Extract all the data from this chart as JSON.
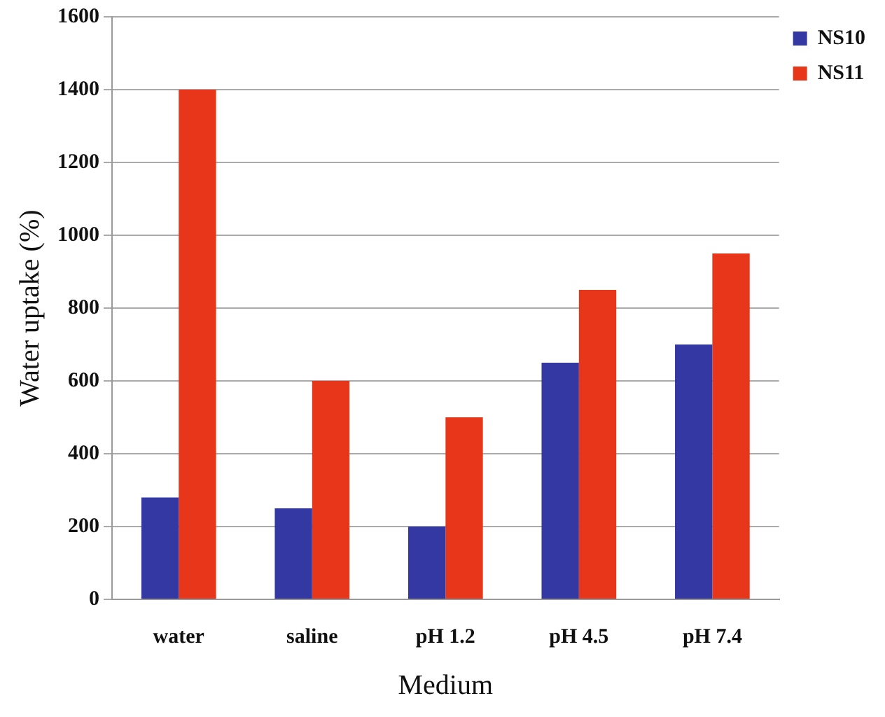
{
  "chart_data": {
    "type": "bar",
    "xlabel": "Medium",
    "ylabel": "Water uptake (%)",
    "categories": [
      "water",
      "saline",
      "pH 1.2",
      "pH 4.5",
      "pH 7.4"
    ],
    "series": [
      {
        "name": "NS10",
        "color": "#3338a3",
        "values": [
          280,
          250,
          200,
          650,
          700
        ]
      },
      {
        "name": "NS11",
        "color": "#e8361a",
        "values": [
          1400,
          600,
          500,
          850,
          950
        ]
      }
    ],
    "ylim": [
      0,
      1600
    ],
    "yticks": [
      0,
      200,
      400,
      600,
      800,
      1000,
      1200,
      1400,
      1600
    ],
    "grid": "y",
    "legend": "top right"
  }
}
